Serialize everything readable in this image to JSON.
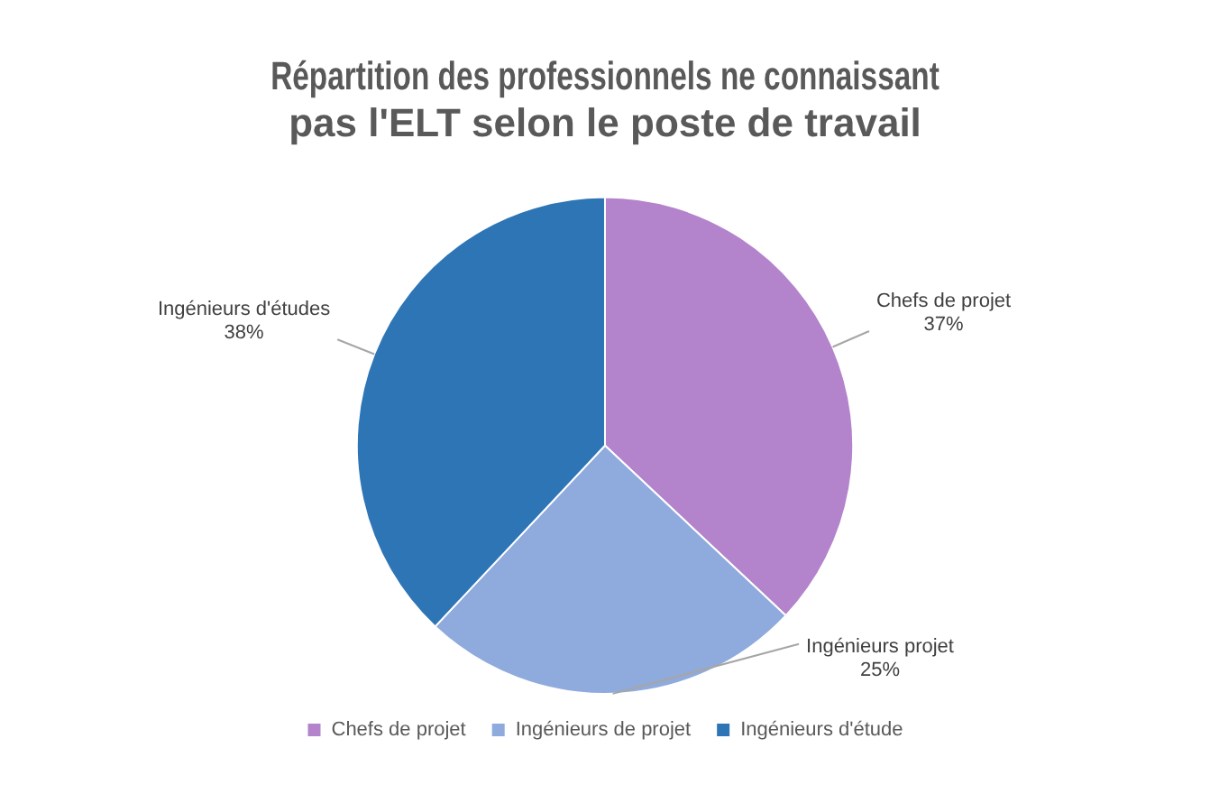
{
  "chart_data": {
    "type": "pie",
    "title": "Répartition des professionnels ne connaissant pas l'ELT selon le poste de travail",
    "categories": [
      "Chefs de projet",
      "Ingénieurs de projet",
      "Ingénieurs d'étude"
    ],
    "values": [
      37,
      25,
      38
    ],
    "colors": [
      "#b383cc",
      "#8faadc",
      "#2e75b6"
    ],
    "value_labels": [
      "Chefs de projet 37%",
      "Ingénieurs projet 25%",
      "Ingénieurs d'études 38%"
    ],
    "legend": "bottom"
  }
}
